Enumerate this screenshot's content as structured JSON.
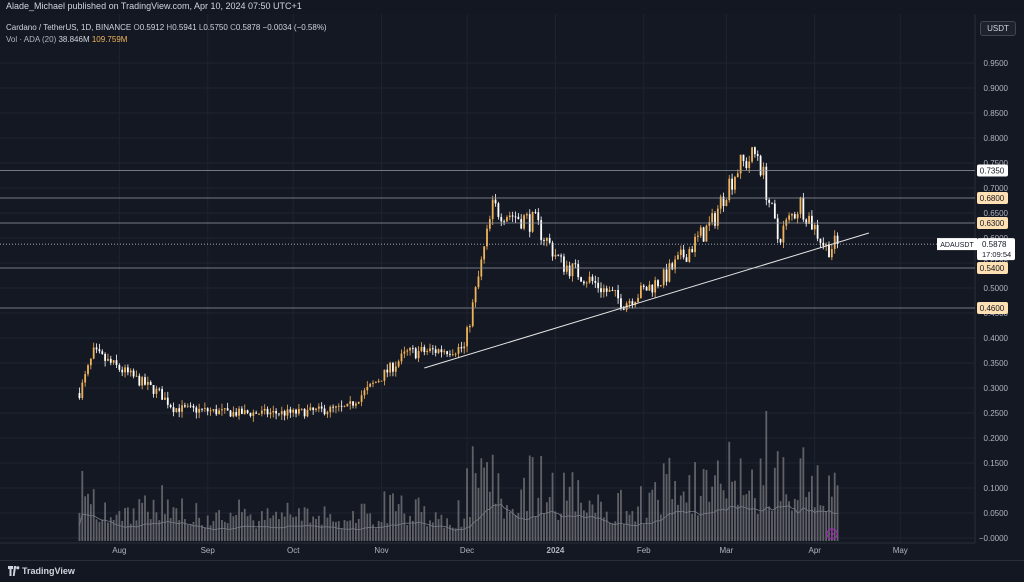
{
  "header": {
    "publish_line": "Alade_Michael published on TradingView.com, Apr 10, 2024 07:50 UTC+1"
  },
  "legend": {
    "symbol": "Cardano / TetherUS, 1D, BINANCE",
    "o_label": "O",
    "o_value": "0.5912",
    "h_label": "H",
    "h_value": "0.5941",
    "l_label": "L",
    "l_value": "0.5750",
    "c_label": "C",
    "c_value": "0.5878",
    "change": "−0.0034 (−0.58%)",
    "vol_label": "Vol · ADA (20)",
    "vol_value": "38.846M",
    "vol_ma": "109.759M"
  },
  "currency_button": "USDT",
  "footer": {
    "brand": "TradingView"
  },
  "colors": {
    "up": "#f0b35a",
    "down": "#ffffff",
    "background": "#141823",
    "grid": "#1f2330",
    "trendline": "#e6e6e6",
    "level": "#9598a1",
    "volume": "#9e9e9e"
  },
  "chart_data": {
    "type": "candlestick",
    "y_ticks": [
      "0.9500",
      "0.9000",
      "0.8500",
      "0.8000",
      "0.7500",
      "0.7000",
      "0.6500",
      "0.6000",
      "0.5500",
      "0.5000",
      "0.4500",
      "0.4000",
      "0.3500",
      "0.3000",
      "0.2500",
      "0.2000",
      "0.1500",
      "0.1000",
      "0.0500",
      "−0.0000"
    ],
    "x_ticks": [
      "Aug",
      "Sep",
      "Oct",
      "Nov",
      "Dec",
      "2024",
      "Feb",
      "Mar",
      "Apr",
      "May"
    ],
    "current_price": {
      "symbol": "ADAUSDT",
      "price": "0.5878",
      "countdown": "17:09:54"
    },
    "levels": [
      "0.7350",
      "0.6800",
      "0.6300",
      "0.5400",
      "0.4600"
    ],
    "trendline": {
      "from": [
        "2023-11-16",
        0.34
      ],
      "to": [
        "2024-04-20",
        0.61
      ]
    },
    "key_prices": [
      [
        "2023-07-18",
        0.29
      ],
      [
        "2023-07-23",
        0.37
      ],
      [
        "2023-08-15",
        0.29
      ],
      [
        "2023-08-20",
        0.26
      ],
      [
        "2023-09-10",
        0.25
      ],
      [
        "2023-10-01",
        0.25
      ],
      [
        "2023-10-20",
        0.26
      ],
      [
        "2023-11-10",
        0.37
      ],
      [
        "2023-11-30",
        0.38
      ],
      [
        "2023-12-10",
        0.66
      ],
      [
        "2023-12-25",
        0.63
      ],
      [
        "2024-01-03",
        0.55
      ],
      [
        "2024-01-12",
        0.52
      ],
      [
        "2024-01-25",
        0.47
      ],
      [
        "2024-02-08",
        0.52
      ],
      [
        "2024-02-25",
        0.63
      ],
      [
        "2024-03-01",
        0.7
      ],
      [
        "2024-03-05",
        0.74
      ],
      [
        "2024-03-12",
        0.77
      ],
      [
        "2024-03-19",
        0.6
      ],
      [
        "2024-03-27",
        0.67
      ],
      [
        "2024-04-05",
        0.58
      ],
      [
        "2024-04-09",
        0.5878
      ]
    ]
  }
}
